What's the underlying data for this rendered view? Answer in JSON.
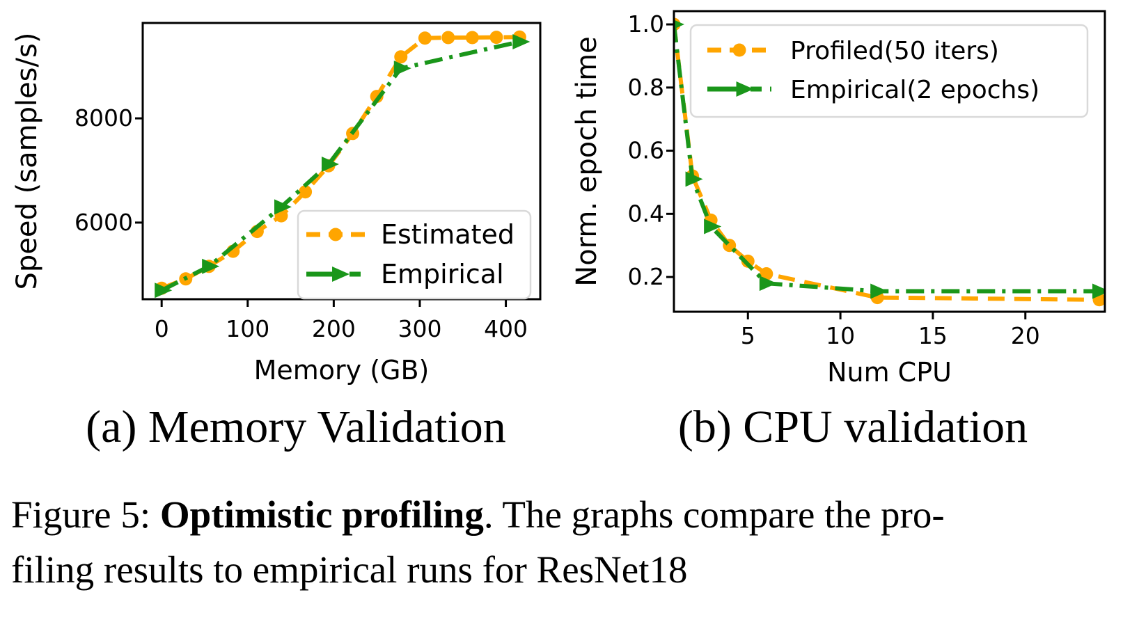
{
  "figure": {
    "subcaption_a": "(a) Memory Validation",
    "subcaption_b": "(b) CPU validation",
    "caption_prefix": "Figure 5: ",
    "caption_bold": "Optimistic profiling",
    "caption_line1_rest": ". The graphs compare the pro-",
    "caption_line2": "filing results to empirical runs for ResNet18"
  },
  "colors": {
    "estimated_orange": "#FFA500",
    "empirical_green": "#1A961A",
    "axis": "#000000",
    "legend_border": "#D9D9D9",
    "background": "#FFFFFF"
  },
  "chart_data": [
    {
      "id": "memory-validation",
      "type": "line",
      "title": "",
      "xlabel": "Memory (GB)",
      "ylabel": "Speed (samples/s)",
      "xlim": [
        -22,
        440
      ],
      "ylim": [
        4530,
        9830
      ],
      "xticks": [
        0,
        100,
        200,
        300,
        400
      ],
      "xticklabels": [
        "0",
        "100",
        "200",
        "300",
        "400"
      ],
      "yticks": [
        6000,
        8000
      ],
      "yticklabels": [
        "6000",
        "8000"
      ],
      "grid": false,
      "legend_position": "lower right",
      "series": [
        {
          "name": "Estimated",
          "color": "#FFA500",
          "linestyle": "dashed",
          "marker": "circle",
          "x": [
            0,
            28,
            55,
            83,
            111,
            139,
            167,
            194,
            222,
            250,
            278,
            306,
            333,
            361,
            389,
            416
          ],
          "y": [
            4740,
            4920,
            5160,
            5450,
            5830,
            6130,
            6590,
            7090,
            7710,
            8420,
            9180,
            9540,
            9550,
            9550,
            9555,
            9560
          ]
        },
        {
          "name": "Empirical",
          "color": "#1A961A",
          "linestyle": "dashdot",
          "marker": "triangle-right",
          "x": [
            0,
            55,
            139,
            194,
            278,
            416
          ],
          "y": [
            4700,
            5160,
            6300,
            7120,
            8960,
            9470
          ]
        }
      ]
    },
    {
      "id": "cpu-validation",
      "type": "line",
      "title": "",
      "xlabel": "Num CPU",
      "ylabel": "Norm. epoch time",
      "xlim": [
        1,
        24.3
      ],
      "ylim": [
        0.09,
        1.042
      ],
      "xticks": [
        5,
        10,
        15,
        20
      ],
      "xticklabels": [
        "5",
        "10",
        "15",
        "20"
      ],
      "yticks": [
        0.2,
        0.4,
        0.6,
        0.8,
        1.0
      ],
      "yticklabels": [
        "0.2",
        "0.4",
        "0.6",
        "0.8",
        "1.0"
      ],
      "grid": false,
      "legend_position": "upper right",
      "series": [
        {
          "name": "Profiled(50 iters)",
          "color": "#FFA500",
          "linestyle": "dashed",
          "marker": "circle",
          "x": [
            1,
            2,
            3,
            4,
            5,
            6,
            12,
            24
          ],
          "y": [
            1.0,
            0.52,
            0.38,
            0.3,
            0.25,
            0.21,
            0.135,
            0.128
          ]
        },
        {
          "name": "Empirical(2 epochs)",
          "color": "#1A961A",
          "linestyle": "dashdot",
          "marker": "triangle-right",
          "x": [
            1,
            2,
            3,
            6,
            12,
            24
          ],
          "y": [
            1.0,
            0.51,
            0.36,
            0.18,
            0.155,
            0.155
          ]
        }
      ]
    }
  ]
}
